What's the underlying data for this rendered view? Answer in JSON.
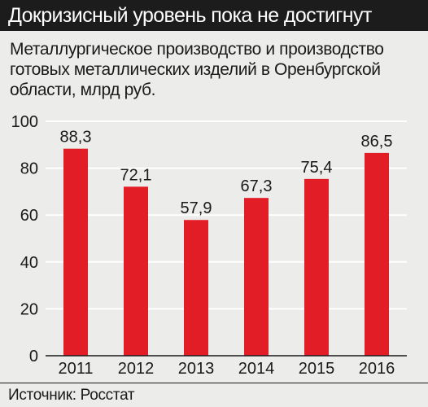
{
  "header": {
    "title": "Докризисный уровень пока не достигнут"
  },
  "footer": {
    "source": "Источник: Росстат"
  },
  "colors": {
    "bar": "#e21d25",
    "header_bg": "#1c1c1c",
    "panel_bg": "#ececeb",
    "grid": "#ffffff",
    "text": "#1a1a1a"
  },
  "chart_data": {
    "type": "bar",
    "title": "Металлургическое производство и производство готовых металлических изделий в Оренбургской области, млрд руб.",
    "categories": [
      "2011",
      "2012",
      "2013",
      "2014",
      "2015",
      "2016"
    ],
    "values": [
      88.3,
      72.1,
      57.9,
      67.3,
      75.4,
      86.5
    ],
    "value_labels": [
      "88,3",
      "72,1",
      "57,9",
      "67,3",
      "75,4",
      "86,5"
    ],
    "ylim": [
      0,
      100
    ],
    "yticks": [
      "0",
      "20",
      "40",
      "60",
      "80",
      "100"
    ],
    "ytick_values": [
      0,
      20,
      40,
      60,
      80,
      100
    ],
    "grid": true,
    "xlabel": "",
    "ylabel": ""
  }
}
